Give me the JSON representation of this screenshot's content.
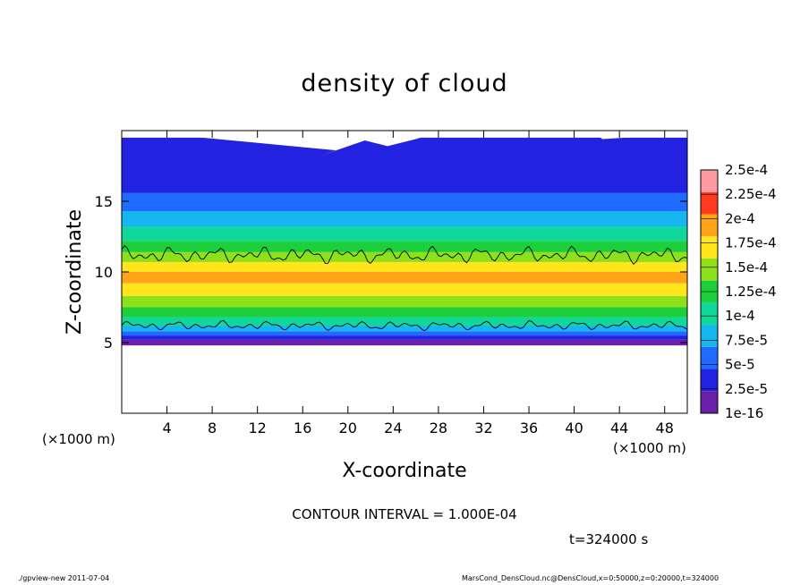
{
  "chart_data": {
    "type": "heatmap",
    "title": "density of cloud",
    "xlabel": "X-coordinate",
    "ylabel": "Z-coordinate",
    "x_unit_label": "(×1000 m)",
    "xlim": [
      0,
      50
    ],
    "ylim": [
      0,
      20
    ],
    "x_ticks": [
      4,
      8,
      12,
      16,
      20,
      24,
      28,
      32,
      36,
      40,
      44,
      48
    ],
    "y_ticks": [
      5,
      10,
      15
    ],
    "colorbar": {
      "labels": [
        "1e-16",
        "2.5e-5",
        "5e-5",
        "7.5e-5",
        "1e-4",
        "1.25e-4",
        "1.5e-4",
        "1.75e-4",
        "2e-4",
        "2.25e-4",
        "2.5e-4"
      ],
      "colors": [
        "#6a1fa8",
        "#2222e0",
        "#1f6bff",
        "#16b6f0",
        "#10d79a",
        "#1ecf3c",
        "#8ee01b",
        "#ffe51a",
        "#ffa318",
        "#ff3a1f",
        "#ff9aa0"
      ]
    },
    "contour_interval_text": "CONTOUR INTERVAL = 1.000E-04",
    "time_text": "t=324000 s",
    "vertical_profile": [
      {
        "z": 4.8,
        "level": 0
      },
      {
        "z": 5.2,
        "level": 1
      },
      {
        "z": 5.5,
        "level": 2
      },
      {
        "z": 5.8,
        "level": 3
      },
      {
        "z": 6.2,
        "level": 4
      },
      {
        "z": 6.8,
        "level": 5
      },
      {
        "z": 7.5,
        "level": 6
      },
      {
        "z": 8.3,
        "level": 7
      },
      {
        "z": 9.2,
        "level": 8
      },
      {
        "z": 10.0,
        "level": 7
      },
      {
        "z": 10.7,
        "level": 6
      },
      {
        "z": 11.4,
        "level": 5
      },
      {
        "z": 12.2,
        "level": 4
      },
      {
        "z": 13.2,
        "level": 3
      },
      {
        "z": 14.3,
        "level": 2
      },
      {
        "z": 15.6,
        "level": 1
      },
      {
        "z": 19.5,
        "level": 0
      }
    ]
  },
  "footer": {
    "left": "./gpview-new  2011-07-04",
    "right": "MarsCond_DensCloud.nc@DensCloud,x=0:50000,z=0:20000,t=324000"
  }
}
